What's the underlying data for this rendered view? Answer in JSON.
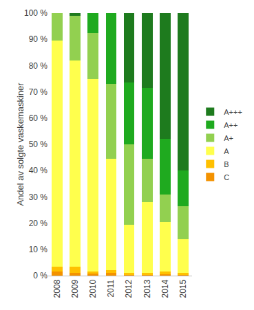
{
  "chart_data": {
    "type": "bar",
    "stacked": true,
    "y_label": "Andel av solgte vaskemaskiner",
    "categories": [
      "2008",
      "2009",
      "2010",
      "2011",
      "2012",
      "2013",
      "2014",
      "2015"
    ],
    "series": [
      {
        "name": "C",
        "color": "#f39200",
        "values": [
          1.5,
          1,
          1,
          1,
          0.5,
          0.5,
          0.5,
          0.5
        ]
      },
      {
        "name": "B",
        "color": "#ffc000",
        "values": [
          2,
          2.5,
          0.5,
          1,
          0.5,
          0.5,
          1,
          0.5
        ]
      },
      {
        "name": "A",
        "color": "#ffff4d",
        "values": [
          86,
          78.5,
          73.5,
          42.5,
          18.5,
          27,
          19,
          13
        ]
      },
      {
        "name": "A+",
        "color": "#92d050",
        "values": [
          10.5,
          17,
          17.5,
          28.5,
          30.5,
          16.5,
          10.5,
          12.5
        ]
      },
      {
        "name": "A++",
        "color": "#1faa1f",
        "values": [
          0,
          0,
          7.5,
          27,
          23.5,
          27,
          21,
          13.5
        ]
      },
      {
        "name": "A+++",
        "color": "#1e7b1e",
        "values": [
          0,
          1,
          0,
          0,
          26.5,
          28.5,
          48,
          60
        ]
      }
    ],
    "ylim": [
      0,
      100
    ],
    "yticks": [
      {
        "value": 0,
        "label": "0 %"
      },
      {
        "value": 10,
        "label": "10 %"
      },
      {
        "value": 20,
        "label": "20 %"
      },
      {
        "value": 30,
        "label": "30 %"
      },
      {
        "value": 40,
        "label": "40 %"
      },
      {
        "value": 50,
        "label": "50 %"
      },
      {
        "value": 60,
        "label": "60 %"
      },
      {
        "value": 70,
        "label": "70 %"
      },
      {
        "value": 80,
        "label": "80 %"
      },
      {
        "value": 90,
        "label": "90 %"
      },
      {
        "value": 100,
        "label": "100 %"
      }
    ],
    "grid": false,
    "legend": "right"
  }
}
